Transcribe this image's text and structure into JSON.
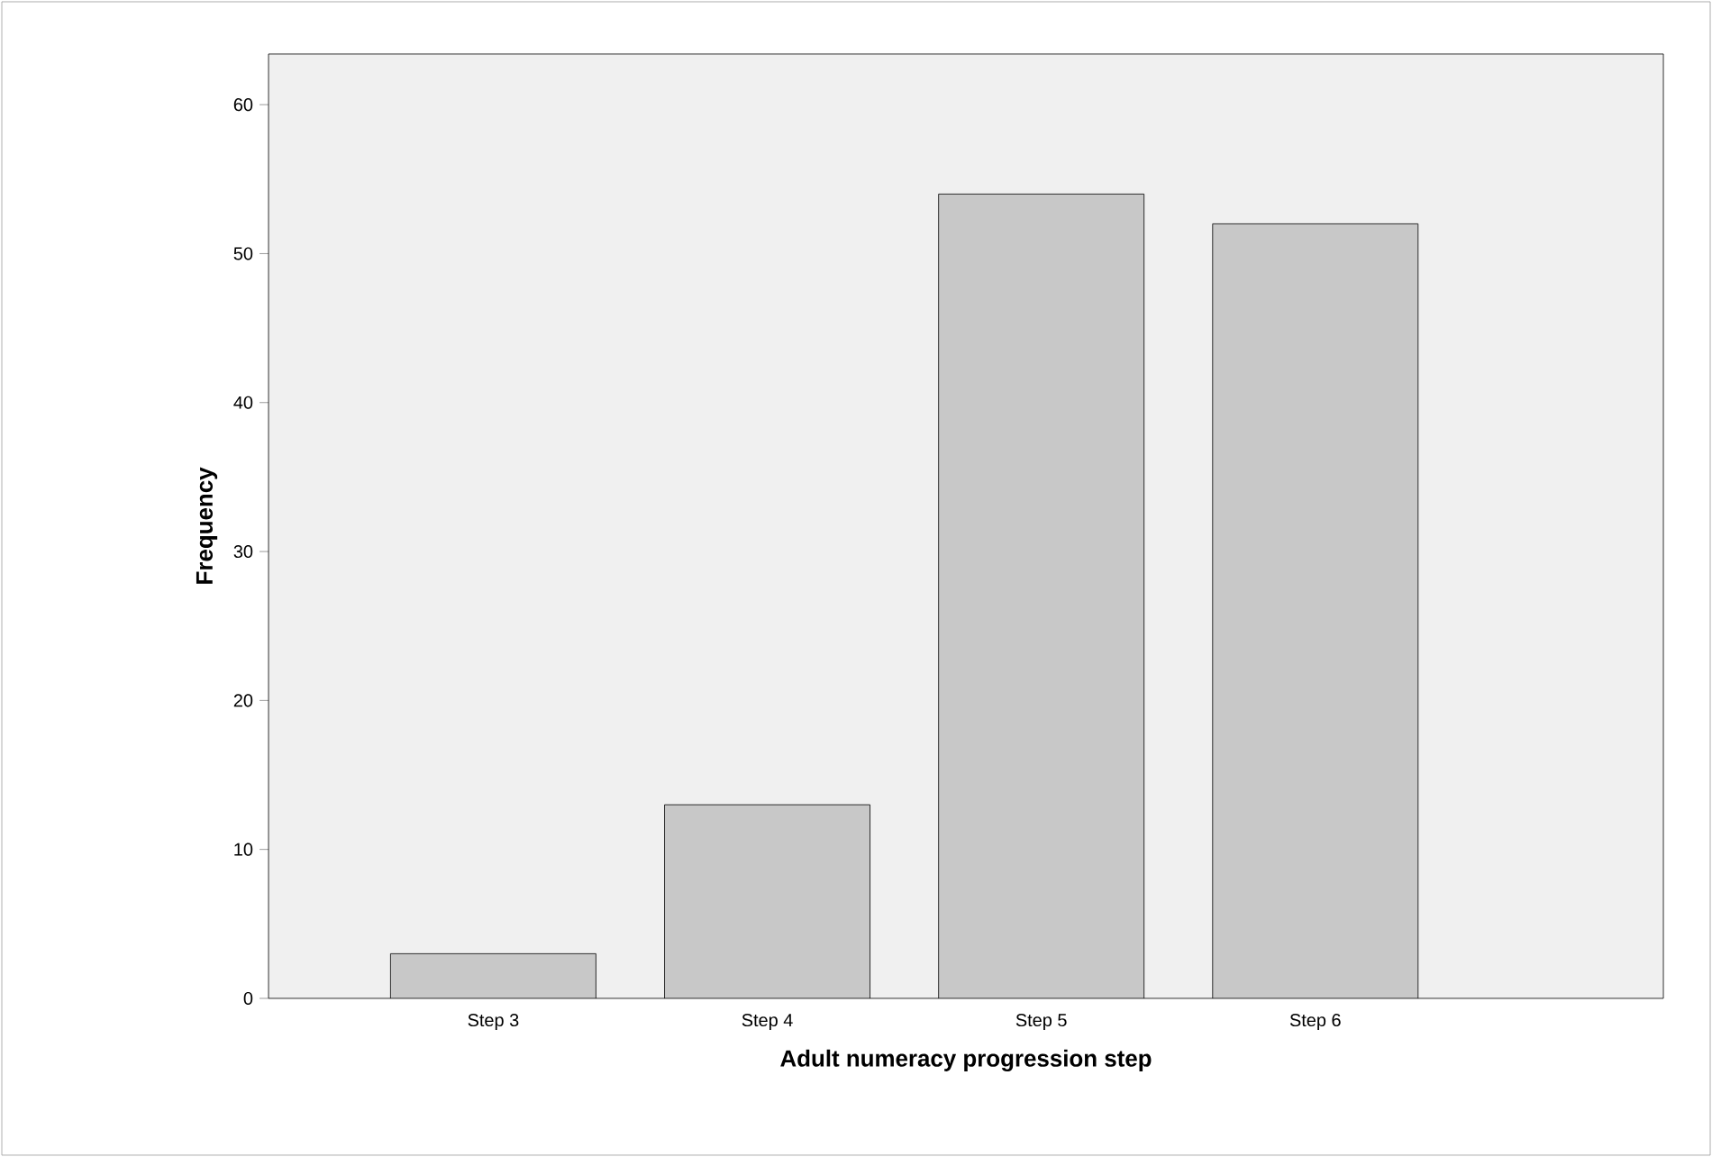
{
  "chart_data": {
    "type": "bar",
    "xlabel": "Adult numeracy progression step",
    "ylabel": "Frequency",
    "categories": [
      "Step 3",
      "Step 4",
      "Step 5",
      "Step 6"
    ],
    "values": [
      3,
      13,
      54,
      52
    ],
    "color": "#c8c8c8",
    "ylim": [
      0,
      63.4
    ],
    "yticks": [
      0,
      10,
      20,
      30,
      40,
      50,
      60
    ],
    "grid": false
  }
}
